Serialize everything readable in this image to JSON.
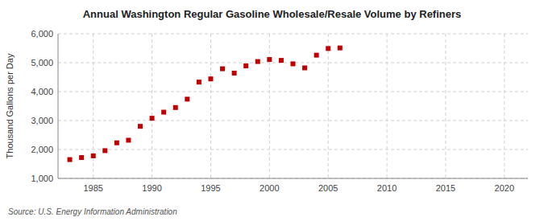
{
  "chart_data": {
    "type": "scatter",
    "title": "Annual Washington Regular Gasoline Wholesale/Resale Volume by Refiners",
    "ylabel": "Thousand Gallons per Day",
    "annotations": [
      "Source: U.S. Energy Information Administration"
    ],
    "x": [
      1983,
      1984,
      1985,
      1986,
      1987,
      1988,
      1989,
      1990,
      1991,
      1992,
      1993,
      1994,
      1995,
      1996,
      1997,
      1998,
      1999,
      2000,
      2001,
      2002,
      2003,
      2004,
      2005,
      2006
    ],
    "values": [
      1650,
      1720,
      1780,
      1960,
      2230,
      2320,
      2800,
      3080,
      3290,
      3450,
      3740,
      4330,
      4440,
      4790,
      4640,
      4890,
      5040,
      5110,
      5080,
      4960,
      4820,
      5260,
      5490,
      5510
    ],
    "color": "#C00000",
    "marker": "square",
    "xlim": [
      1982,
      2022
    ],
    "ylim": [
      1000,
      6000
    ],
    "xticks": [
      1985,
      1990,
      1995,
      2000,
      2005,
      2010,
      2015,
      2020
    ],
    "yticks": [
      {
        "value": 1000,
        "label": "1,000"
      },
      {
        "value": 2000,
        "label": "2,000"
      },
      {
        "value": 3000,
        "label": "3,000"
      },
      {
        "value": 4000,
        "label": "4,000"
      },
      {
        "value": 5000,
        "label": "5,000"
      },
      {
        "value": 6000,
        "label": "6,000"
      }
    ],
    "grid": true
  }
}
